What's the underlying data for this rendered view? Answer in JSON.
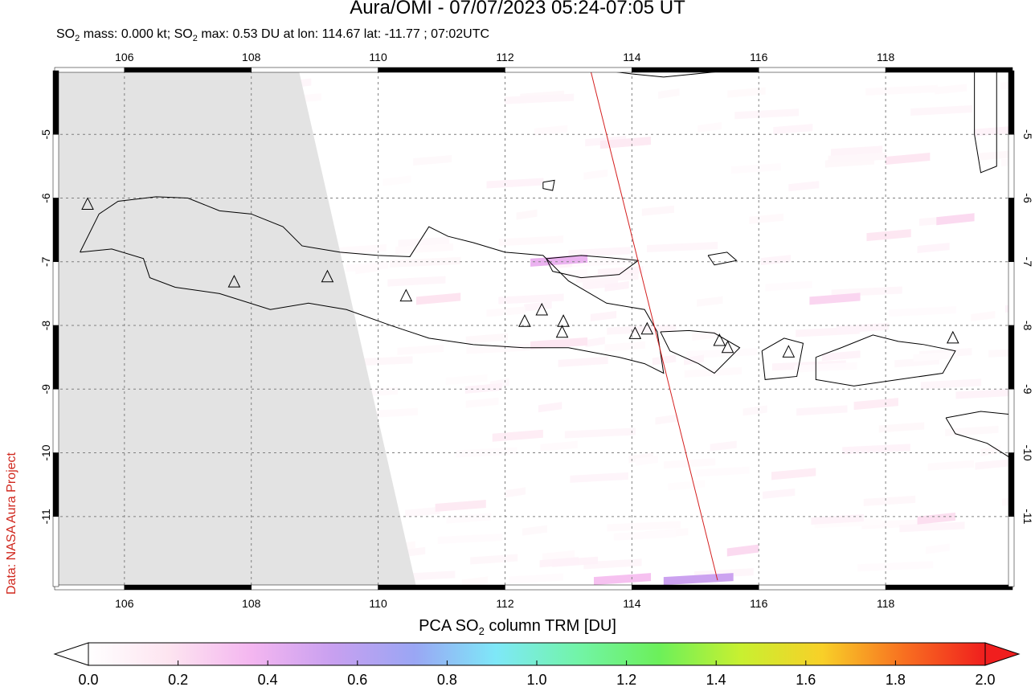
{
  "header": {
    "title": "Aura/OMI - 07/07/2023 05:24-07:05 UT",
    "subtitle_parts": [
      "SO",
      "2",
      " mass: 0.000 kt; SO",
      "2",
      " max: 0.53 DU at lon: 114.67 lat: -11.77 ; 07:02UTC"
    ]
  },
  "credit": "Data: NASA Aura Project",
  "colorbar": {
    "title_parts": [
      "PCA SO",
      "2",
      " column TRM [DU]"
    ],
    "ticks": [
      "0.0",
      "0.2",
      "0.4",
      "0.6",
      "0.8",
      "1.0",
      "1.2",
      "1.4",
      "1.6",
      "1.8",
      "2.0"
    ],
    "colors": [
      "#ffffff",
      "#fde4f0",
      "#f4b6f0",
      "#c8a0f0",
      "#9aa6f4",
      "#7ee8f8",
      "#72f4a8",
      "#6cf05a",
      "#c8f030",
      "#f8d028",
      "#f87020",
      "#f01e1e"
    ]
  },
  "chart_data": {
    "type": "heatmap",
    "map": "SO2 column over Java / Bali / Lombok / Sumbawa",
    "xlim": [
      104.9,
      120.0
    ],
    "ylim": [
      -12.1,
      -4.0
    ],
    "x_ticks": [
      106,
      108,
      110,
      112,
      114,
      116,
      118
    ],
    "x_tick_labels": [
      "106",
      "108",
      "110",
      "112",
      "114",
      "116",
      "118"
    ],
    "y_ticks": [
      -5,
      -6,
      -7,
      -8,
      -9,
      -10,
      -11
    ],
    "y_tick_labels": [
      "-5",
      "-6",
      "-7",
      "-8",
      "-9",
      "-10",
      "-11"
    ],
    "grid": true,
    "no_data_color": "#e3e3e3",
    "max_value": {
      "value_du": 0.53,
      "lon": 114.67,
      "lat": -11.77
    },
    "track_line": {
      "color": "#d42020",
      "from": [
        113.35,
        -4.0
      ],
      "to": [
        115.35,
        -12.0
      ]
    },
    "volcanoes": [
      [
        105.42,
        -6.1
      ],
      [
        107.73,
        -7.32
      ],
      [
        109.2,
        -7.24
      ],
      [
        110.44,
        -7.54
      ],
      [
        112.31,
        -7.94
      ],
      [
        112.58,
        -7.76
      ],
      [
        112.92,
        -7.94
      ],
      [
        112.9,
        -8.11
      ],
      [
        114.05,
        -8.13
      ],
      [
        114.24,
        -8.06
      ],
      [
        115.38,
        -8.24
      ],
      [
        115.51,
        -8.35
      ],
      [
        116.47,
        -8.42
      ],
      [
        119.06,
        -8.2
      ]
    ],
    "so2_streaks": [
      {
        "lon": 112.4,
        "lat": -6.95,
        "width": 0.9,
        "value": 0.4
      },
      {
        "lon": 114.5,
        "lat": -11.95,
        "width": 1.1,
        "value": 0.53
      },
      {
        "lon": 113.4,
        "lat": -11.95,
        "width": 0.9,
        "value": 0.32
      },
      {
        "lon": 116.8,
        "lat": -7.55,
        "width": 0.8,
        "value": 0.24
      },
      {
        "lon": 118.8,
        "lat": -6.3,
        "width": 0.6,
        "value": 0.22
      },
      {
        "lon": 110.6,
        "lat": -7.55,
        "width": 0.7,
        "value": 0.18
      },
      {
        "lon": 112.4,
        "lat": -8.25,
        "width": 0.9,
        "value": 0.16
      },
      {
        "lon": 117.7,
        "lat": -6.55,
        "width": 0.7,
        "value": 0.16
      },
      {
        "lon": 115.5,
        "lat": -11.5,
        "width": 0.5,
        "value": 0.22
      },
      {
        "lon": 118.5,
        "lat": -11.0,
        "width": 0.6,
        "value": 0.2
      },
      {
        "lon": 110.9,
        "lat": -10.8,
        "width": 0.8,
        "value": 0.14
      },
      {
        "lon": 118.0,
        "lat": -5.35,
        "width": 0.7,
        "value": 0.16
      },
      {
        "lon": 111.8,
        "lat": -9.7,
        "width": 0.8,
        "value": 0.12
      },
      {
        "lon": 116.2,
        "lat": -10.3,
        "width": 0.7,
        "value": 0.12
      },
      {
        "lon": 113.5,
        "lat": -5.1,
        "width": 0.8,
        "value": 0.14
      },
      {
        "lon": 117.5,
        "lat": -9.2,
        "width": 0.7,
        "value": 0.12
      }
    ]
  }
}
